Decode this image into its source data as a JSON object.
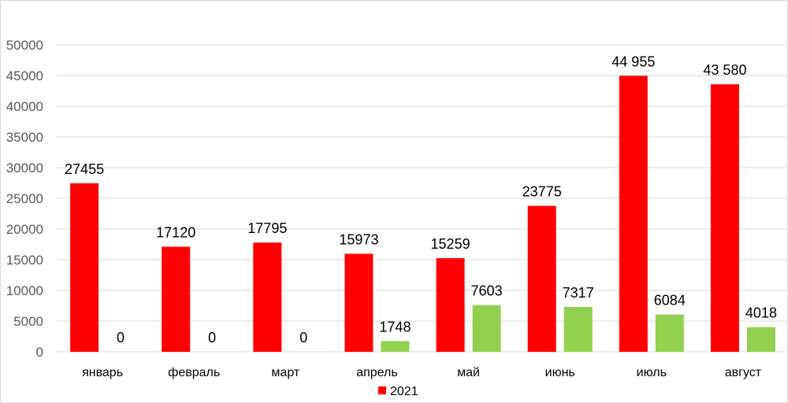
{
  "chart_data": {
    "type": "bar",
    "title": "",
    "xlabel": "",
    "ylabel": "",
    "ylim": [
      0,
      50000
    ],
    "yticks": [
      "0",
      "5000",
      "10000",
      "15000",
      "20000",
      "25000",
      "30000",
      "35000",
      "40000",
      "45000",
      "50000"
    ],
    "grid": true,
    "legend_placement": "bottom",
    "categories": [
      "январь",
      "февраль",
      "март",
      "апрель",
      "май",
      "июнь",
      "июль",
      "август"
    ],
    "series": [
      {
        "name": "2021",
        "color": "#ff0000",
        "values": [
          27455,
          17120,
          17795,
          15973,
          15259,
          23775,
          44955,
          43580
        ],
        "labels": [
          "27455",
          "17120",
          "17795",
          "15973",
          "15259",
          "23775",
          "44 955",
          "43 580"
        ]
      },
      {
        "name": "",
        "color": "#92d050",
        "values": [
          0,
          0,
          0,
          1748,
          7603,
          7317,
          6084,
          4018
        ],
        "labels": [
          "0",
          "0",
          "0",
          "1748",
          "7603",
          "7317",
          "6084",
          "4018"
        ]
      }
    ],
    "legend": [
      "2021"
    ]
  }
}
